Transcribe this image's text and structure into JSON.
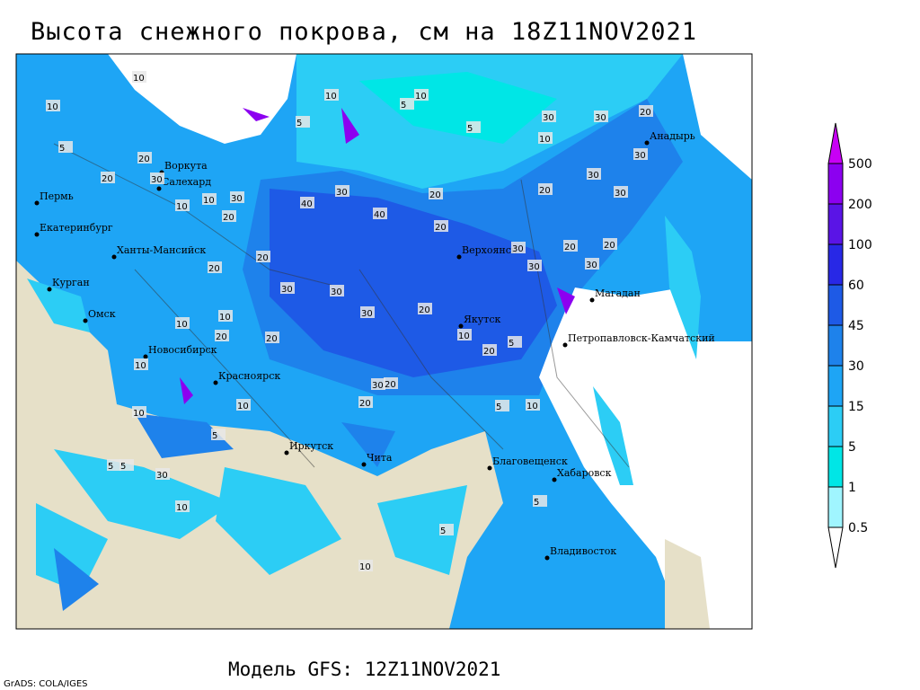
{
  "header": {
    "title": "Высота снежного покрова, см на 18Z11NOV2021"
  },
  "colorbar": {
    "levels": [
      0.5,
      1,
      5,
      15,
      30,
      45,
      60,
      100,
      200,
      500
    ],
    "colors": [
      "#ffffff",
      "#a0f5ff",
      "#00e6e6",
      "#2ccdf5",
      "#1ea5f5",
      "#1e82eb",
      "#1e5ae6",
      "#2828e6",
      "#5a14e6",
      "#8c00f0",
      "#c800f5"
    ]
  },
  "cities": [
    "Воркута",
    "Салехард",
    "Пермь",
    "Екатеринбург",
    "Ханты-Мансийск",
    "Курган",
    "Омск",
    "Новосибирск",
    "Красноярск",
    "Иркутск",
    "Чита",
    "Верхоянск",
    "Якутск",
    "Магадан",
    "Анадырь",
    "Петропавловск-Камчатский",
    "Благовещенск",
    "Хабаровск",
    "Владивосток"
  ],
  "contour_labels": [
    10,
    5,
    10,
    5,
    5,
    10,
    10,
    5,
    20,
    10,
    20,
    30,
    30,
    10,
    20,
    20,
    20,
    30,
    40,
    40,
    30,
    30,
    20,
    20,
    30,
    30,
    10,
    20,
    30,
    20,
    30,
    30,
    30,
    20,
    30,
    30,
    10,
    20,
    20,
    10,
    10,
    20,
    30,
    20,
    20,
    10,
    5,
    10,
    10,
    30,
    10,
    5,
    5,
    5,
    10,
    5,
    5,
    5,
    10,
    30,
    20,
    20
  ],
  "footer": {
    "model": "Модель GFS: 12Z11NOV2021",
    "credit": "GrADS: COLA/IGES"
  }
}
